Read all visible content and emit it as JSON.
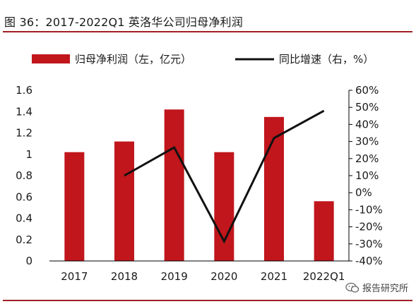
{
  "title": "图 36：2017-2022Q1 英洛华公司归母净利润",
  "watermark": "报告研究所",
  "watermark_icon": "wechat-icon",
  "colors": {
    "bar": "#c0161c",
    "line": "#111111",
    "rule": "#a01f24",
    "text": "#1a1a1a"
  },
  "chart_data": {
    "type": "bar",
    "categories": [
      "2017",
      "2018",
      "2019",
      "2020",
      "2021",
      "2022Q1"
    ],
    "series": [
      {
        "name": "归母净利润（左，亿元）",
        "type": "bar",
        "axis": "left",
        "values": [
          1.02,
          1.12,
          1.42,
          1.02,
          1.35,
          0.56
        ]
      },
      {
        "name": "同比增速（右，%）",
        "type": "line",
        "axis": "right",
        "values": [
          null,
          10,
          26.5,
          -28.5,
          32,
          48
        ]
      }
    ],
    "y_left": {
      "min": 0,
      "max": 1.6,
      "ticks": [
        0,
        0.2,
        0.4,
        0.6,
        0.8,
        1,
        1.2,
        1.4,
        1.6
      ],
      "tick_labels": [
        "0",
        "0.2",
        "0.4",
        "0.6",
        "0.8",
        "1",
        "1.2",
        "1.4",
        "1.6"
      ]
    },
    "y_right": {
      "min": -40,
      "max": 60,
      "ticks": [
        -40,
        -30,
        -20,
        -10,
        0,
        10,
        20,
        30,
        40,
        50,
        60
      ],
      "tick_labels": [
        "-40%",
        "-30%",
        "-20%",
        "-10%",
        "0%",
        "10%",
        "20%",
        "30%",
        "40%",
        "50%",
        "60%"
      ]
    },
    "legend_position": "top",
    "grid": false
  }
}
